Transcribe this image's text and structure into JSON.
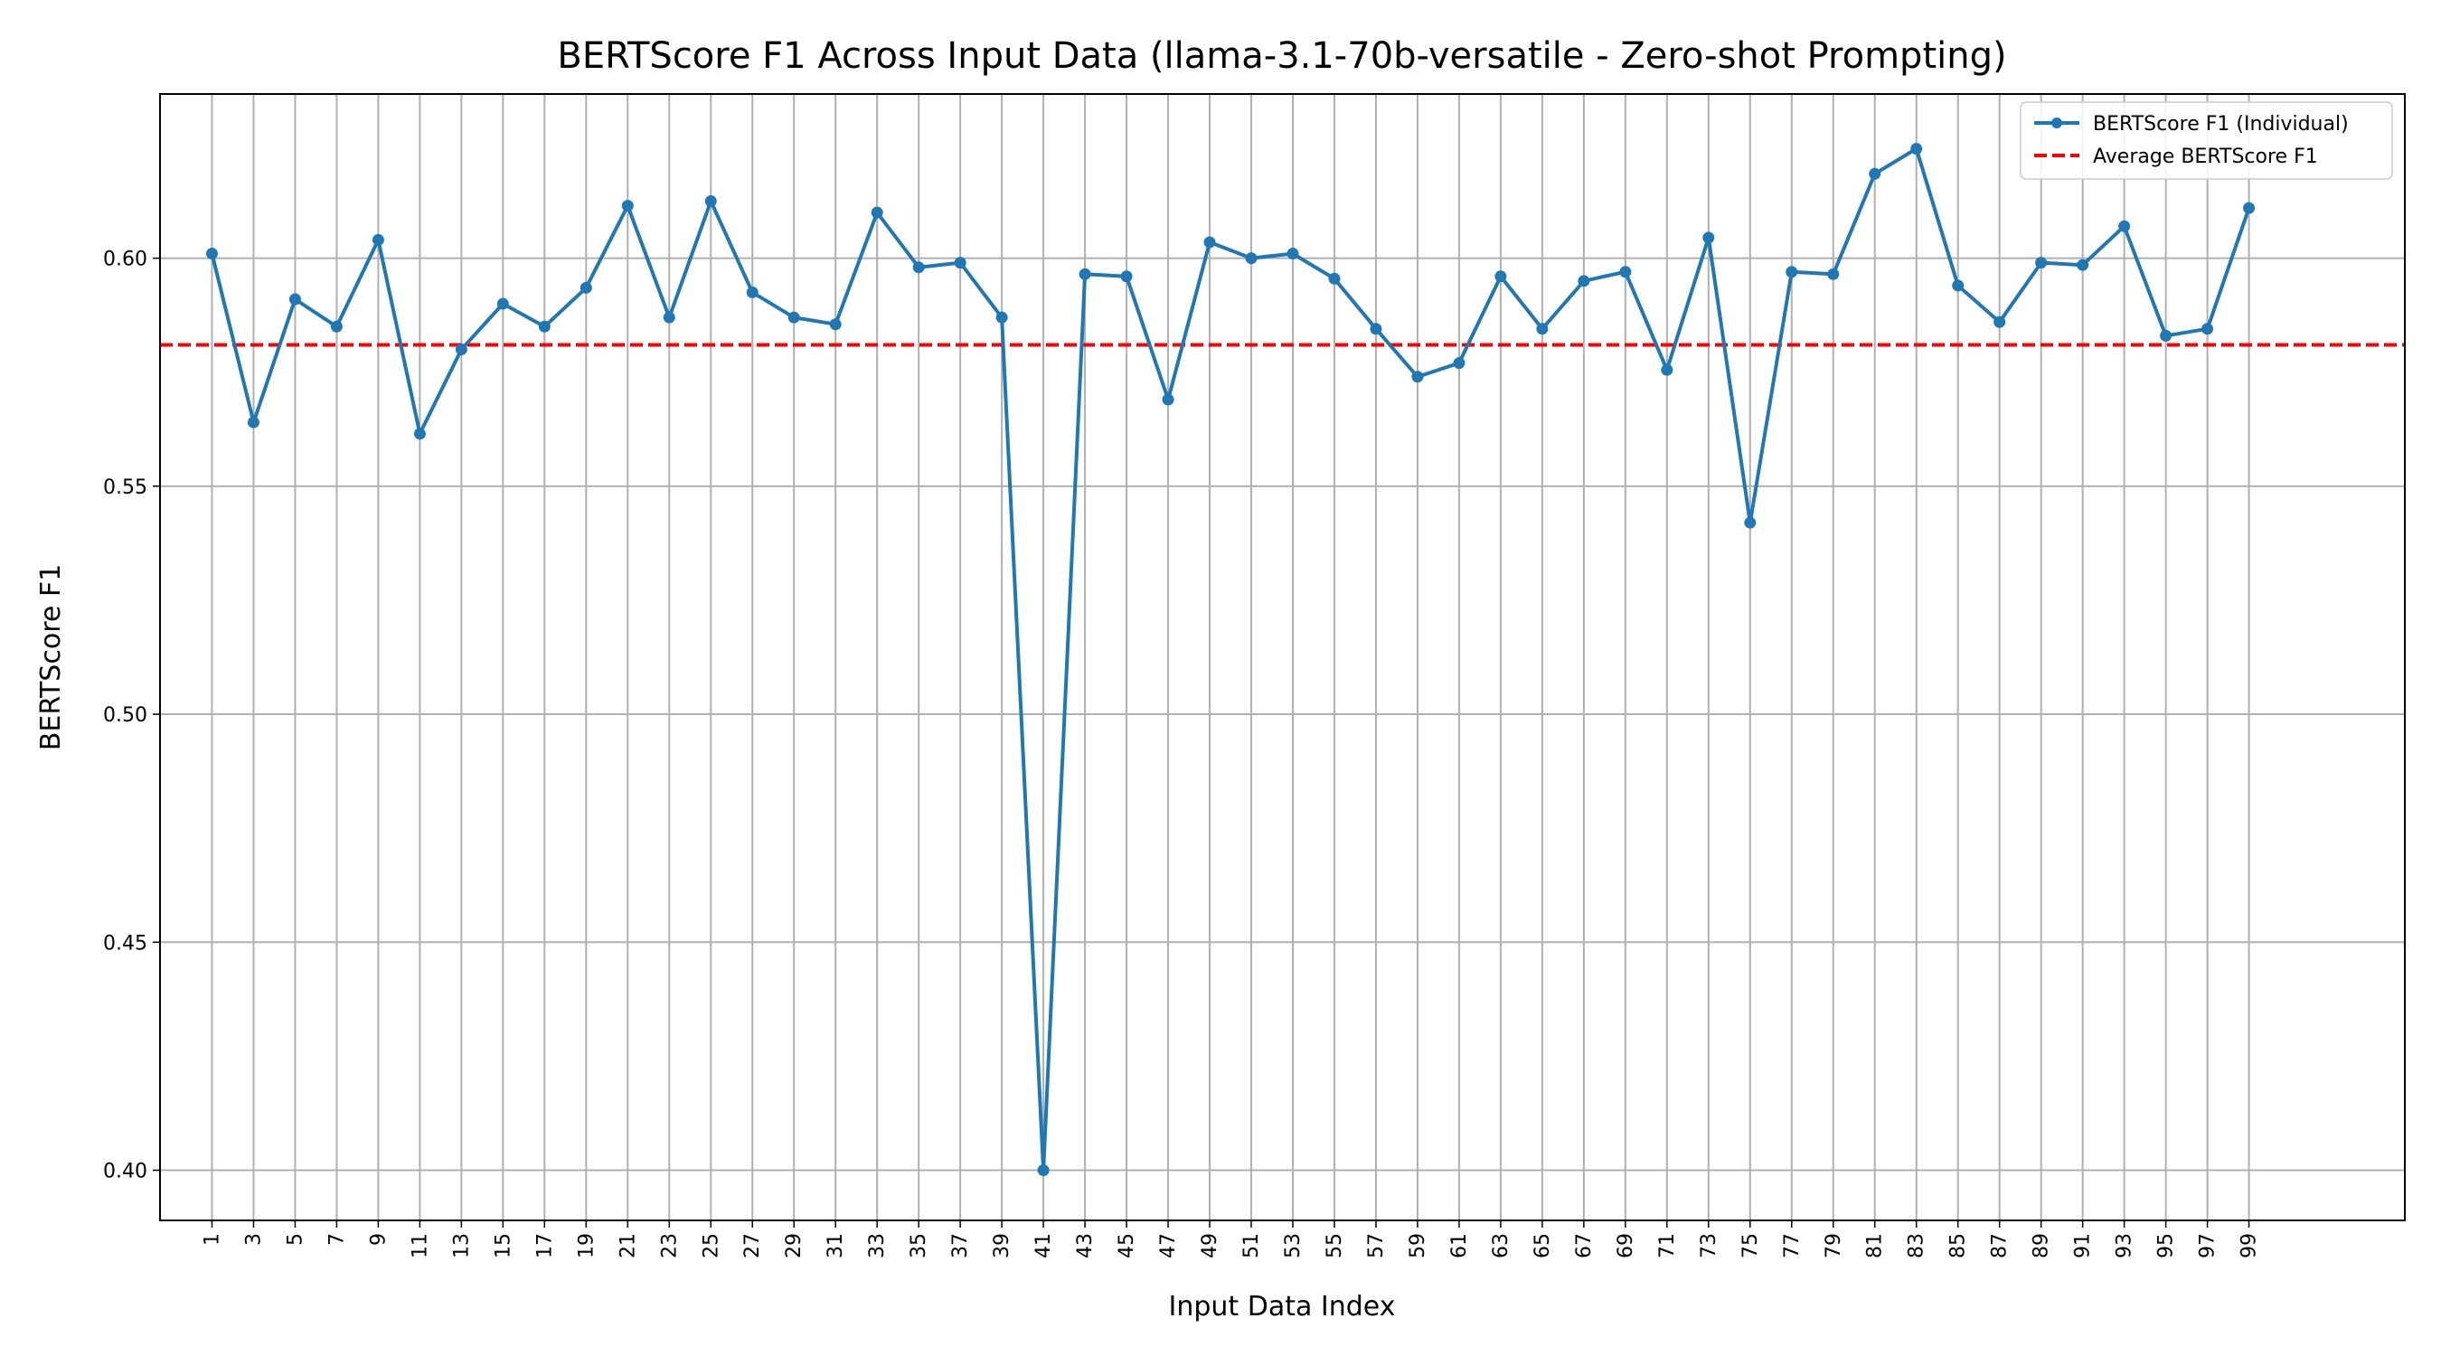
{
  "chart_data": {
    "type": "line",
    "title": "BERTScore F1 Across Input Data (llama-3.1-70b-versatile - Zero-shot Prompting)",
    "xlabel": "Input Data Index",
    "ylabel": "BERTScore F1",
    "xlim": [
      -1.5,
      106.5
    ],
    "ylim": [
      0.389,
      0.636
    ],
    "xticks": [
      1,
      3,
      5,
      7,
      9,
      11,
      13,
      15,
      17,
      19,
      21,
      23,
      25,
      27,
      29,
      31,
      33,
      35,
      37,
      39,
      41,
      43,
      45,
      47,
      49,
      51,
      53,
      55,
      57,
      59,
      61,
      63,
      65,
      67,
      69,
      71,
      73,
      75,
      77,
      79,
      81,
      83,
      85,
      87,
      89,
      91,
      93,
      95,
      97,
      99
    ],
    "yticks": [
      0.4,
      0.45,
      0.5,
      0.55,
      0.6
    ],
    "ytick_labels": [
      "0.40",
      "0.45",
      "0.50",
      "0.55",
      "0.60"
    ],
    "grid": true,
    "legend_position": "top-right",
    "series": [
      {
        "name": "BERTScore F1 (Individual)",
        "color": "#1f77b4",
        "style": "solid-line-with-markers",
        "x": [
          1,
          3,
          5,
          7,
          9,
          11,
          13,
          15,
          17,
          19,
          21,
          23,
          25,
          27,
          29,
          31,
          33,
          35,
          37,
          39,
          41,
          43,
          45,
          47,
          49,
          51,
          53,
          55,
          57,
          59,
          61,
          63,
          65,
          67,
          69,
          71,
          73,
          75,
          77,
          79,
          81,
          83,
          85,
          87,
          89,
          91,
          93,
          95,
          97,
          99
        ],
        "values": [
          0.601,
          0.564,
          0.591,
          0.585,
          0.604,
          0.5615,
          0.58,
          0.59,
          0.585,
          0.5935,
          0.6115,
          0.587,
          0.6125,
          0.5925,
          0.587,
          0.5855,
          0.61,
          0.598,
          0.599,
          0.587,
          0.4,
          0.5965,
          0.596,
          0.569,
          0.6035,
          0.6,
          0.601,
          0.5955,
          0.5845,
          0.574,
          0.577,
          0.596,
          0.5845,
          0.595,
          0.597,
          0.5755,
          0.6045,
          0.542,
          0.597,
          0.5965,
          0.6185,
          0.624,
          0.594,
          0.586,
          0.599,
          0.5985,
          0.607,
          0.583,
          0.5845,
          0.611
        ]
      },
      {
        "name": "Average BERTScore F1",
        "color": "#ff0000",
        "style": "dashed",
        "y": 0.581
      }
    ]
  }
}
